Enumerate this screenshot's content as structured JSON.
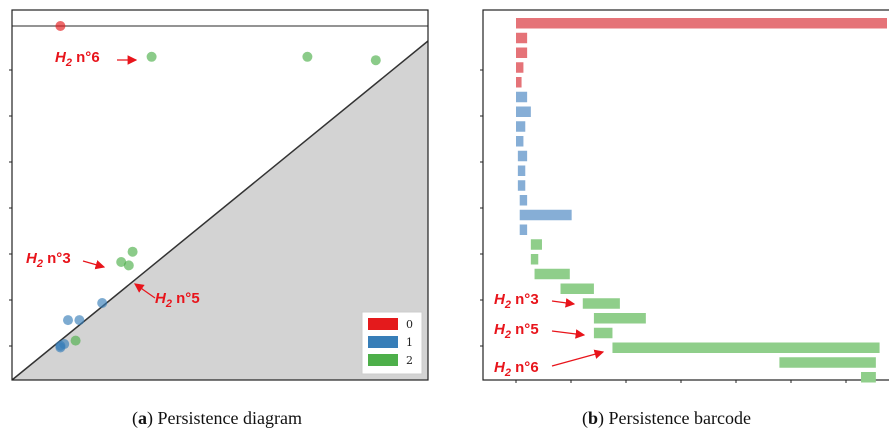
{
  "chart_data": [
    {
      "type": "scatter",
      "title": "",
      "xlabel": "",
      "ylabel": "",
      "xlim": [
        0,
        100
      ],
      "ylim": [
        0,
        100
      ],
      "diagonal": true,
      "infinity_line": true,
      "legend": {
        "placement": "bottom-right",
        "entries": [
          "0",
          "1",
          "2"
        ]
      },
      "colors": {
        "0": "#e41a1c",
        "1": "#377eb8",
        "2": "#4daf4a"
      },
      "series": [
        {
          "name": "0",
          "points": [
            [
              8,
              100
            ]
          ]
        },
        {
          "name": "1",
          "points": [
            [
              8,
              6
            ],
            [
              8,
              6.5
            ],
            [
              9,
              7
            ],
            [
              10,
              14
            ],
            [
              13,
              14
            ],
            [
              19,
              19
            ]
          ]
        },
        {
          "name": "2",
          "points": [
            [
              12,
              8
            ],
            [
              24,
              31
            ],
            [
              26,
              30
            ],
            [
              27,
              34
            ],
            [
              32,
              91
            ],
            [
              73,
              91
            ],
            [
              91,
              90
            ]
          ]
        }
      ],
      "annotations": [
        {
          "sub": "2",
          "num": "6"
        },
        {
          "sub": "2",
          "num": "3"
        },
        {
          "sub": "2",
          "num": "5"
        }
      ]
    },
    {
      "type": "bar",
      "title": "",
      "xlim": [
        0,
        100
      ],
      "grid": false,
      "bars": [
        {
          "dim": 0,
          "start": 0,
          "end": 100
        },
        {
          "dim": 0,
          "start": 0,
          "end": 3
        },
        {
          "dim": 0,
          "start": 0,
          "end": 3
        },
        {
          "dim": 0,
          "start": 0,
          "end": 2
        },
        {
          "dim": 0,
          "start": 0,
          "end": 1.5
        },
        {
          "dim": 1,
          "start": 0,
          "end": 3
        },
        {
          "dim": 1,
          "start": 0,
          "end": 4
        },
        {
          "dim": 1,
          "start": 0,
          "end": 2.5
        },
        {
          "dim": 1,
          "start": 0,
          "end": 2
        },
        {
          "dim": 1,
          "start": 0.5,
          "end": 3
        },
        {
          "dim": 1,
          "start": 0.5,
          "end": 2.5
        },
        {
          "dim": 1,
          "start": 0.5,
          "end": 2.5
        },
        {
          "dim": 1,
          "start": 1,
          "end": 3
        },
        {
          "dim": 1,
          "start": 1,
          "end": 15
        },
        {
          "dim": 1,
          "start": 1,
          "end": 3
        },
        {
          "dim": 2,
          "start": 4,
          "end": 7
        },
        {
          "dim": 2,
          "start": 4,
          "end": 6
        },
        {
          "dim": 2,
          "start": 5,
          "end": 14.5
        },
        {
          "dim": 2,
          "start": 12,
          "end": 21
        },
        {
          "dim": 2,
          "start": 18,
          "end": 28
        },
        {
          "dim": 2,
          "start": 21,
          "end": 35
        },
        {
          "dim": 2,
          "start": 21,
          "end": 26
        },
        {
          "dim": 2,
          "start": 26,
          "end": 98
        },
        {
          "dim": 2,
          "start": 71,
          "end": 97
        },
        {
          "dim": 2,
          "start": 93,
          "end": 97
        }
      ],
      "annotations": [
        {
          "sub": "2",
          "num": "3"
        },
        {
          "sub": "2",
          "num": "5"
        },
        {
          "sub": "2",
          "num": "6"
        }
      ]
    }
  ],
  "captions": {
    "a": {
      "letter": "a",
      "text": " Persistence diagram"
    },
    "b": {
      "letter": "b",
      "text": " Persistence barcode"
    }
  }
}
